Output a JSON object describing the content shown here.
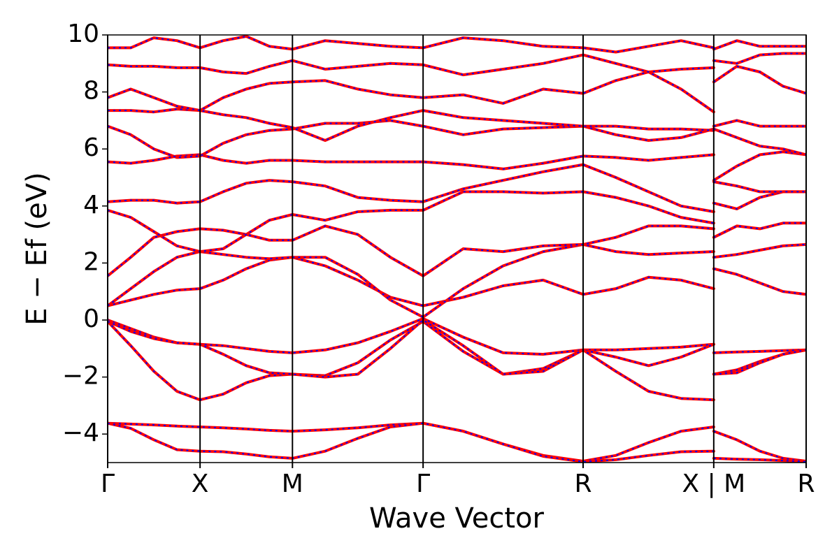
{
  "chart_data": {
    "type": "line",
    "xlabel": "Wave Vector",
    "ylabel": "E − Ef (eV)",
    "xlim": [
      0,
      3.78
    ],
    "ylim": [
      -5,
      10
    ],
    "xticks": [
      {
        "value": 0,
        "label": "Γ"
      },
      {
        "value": 0.5,
        "label": "X"
      },
      {
        "value": 1.0,
        "label": "M"
      },
      {
        "value": 1.707,
        "label": "Γ"
      },
      {
        "value": 2.573,
        "label": "R"
      },
      {
        "value": 3.28,
        "label": "X | M"
      },
      {
        "value": 3.78,
        "label": "R"
      }
    ],
    "yticks": [
      {
        "value": -4,
        "label": "−4"
      },
      {
        "value": -2,
        "label": "−2"
      },
      0,
      2,
      4,
      6,
      8,
      {
        "value": 10,
        "label": "10"
      }
    ],
    "line_color": "#ff0000",
    "dash_color": "#0000ff",
    "x": [
      0,
      0.125,
      0.25,
      0.375,
      0.5,
      0.625,
      0.75,
      0.875,
      1.0,
      1.177,
      1.354,
      1.53,
      1.707,
      1.924,
      2.14,
      2.357,
      2.573,
      2.75,
      2.927,
      3.103,
      3.28,
      3.28,
      3.28,
      3.405,
      3.53,
      3.655,
      3.78
    ],
    "series": [
      {
        "values": [
          -3.62,
          -3.65,
          -3.68,
          -3.72,
          -3.75,
          -3.78,
          -3.82,
          -3.87,
          -3.9,
          -3.85,
          -3.78,
          -3.68,
          -3.62,
          -3.9,
          -4.35,
          -4.75,
          -4.95,
          -4.75,
          -4.3,
          -3.9,
          -3.75,
          null,
          -3.9,
          -4.2,
          -4.6,
          -4.85,
          -4.95
        ]
      },
      {
        "values": [
          -3.62,
          -3.8,
          -4.2,
          -4.55,
          -4.6,
          -4.62,
          -4.7,
          -4.8,
          -4.85,
          -4.6,
          -4.15,
          -3.75,
          -3.62,
          -3.9,
          -4.35,
          -4.78,
          -4.97,
          -4.9,
          -4.75,
          -4.62,
          -4.6,
          null,
          -4.85,
          -4.88,
          -4.9,
          -4.93,
          -4.97
        ]
      },
      {
        "values": [
          0,
          -0.3,
          -0.6,
          -0.8,
          -0.85,
          -0.9,
          -1.0,
          -1.1,
          -1.15,
          -1.05,
          -0.8,
          -0.4,
          0.05,
          -0.6,
          -1.15,
          -1.2,
          -1.05,
          -1.05,
          -1.0,
          -0.95,
          -0.85,
          null,
          -1.15,
          -1.12,
          -1.1,
          -1.07,
          -1.05
        ]
      },
      {
        "values": [
          -0.05,
          -0.9,
          -1.8,
          -2.5,
          -2.8,
          -2.6,
          -2.2,
          -1.95,
          -1.9,
          -1.95,
          -1.5,
          -0.7,
          -0.05,
          -1.1,
          -1.9,
          -1.7,
          -1.05,
          -1.3,
          -1.6,
          -1.3,
          -0.85,
          null,
          -1.9,
          -1.75,
          -1.45,
          -1.2,
          -1.05
        ]
      },
      {
        "values": [
          -0.05,
          -0.4,
          -0.65,
          -0.8,
          -0.85,
          -1.2,
          -1.6,
          -1.85,
          -1.9,
          -2.0,
          -1.9,
          -1.0,
          0,
          -0.9,
          -1.9,
          -1.8,
          -1.05,
          -1.8,
          -2.5,
          -2.75,
          -2.8,
          null,
          -1.9,
          -1.85,
          -1.5,
          -1.2,
          -1.05
        ]
      },
      {
        "values": [
          0.5,
          0.7,
          0.9,
          1.05,
          1.1,
          1.4,
          1.8,
          2.1,
          2.2,
          1.9,
          1.4,
          0.8,
          0.5,
          0.8,
          1.2,
          1.4,
          0.9,
          1.1,
          1.5,
          1.4,
          1.1,
          null,
          1.8,
          1.6,
          1.3,
          1.0,
          0.9
        ]
      },
      {
        "values": [
          0.5,
          1.1,
          1.7,
          2.2,
          2.4,
          2.3,
          2.2,
          2.15,
          2.2,
          2.2,
          1.6,
          0.7,
          0.1,
          1.1,
          1.9,
          2.4,
          2.65,
          2.4,
          2.3,
          2.35,
          2.4,
          null,
          2.2,
          2.3,
          2.45,
          2.6,
          2.65
        ]
      },
      {
        "values": [
          1.55,
          2.2,
          2.9,
          3.1,
          3.2,
          3.15,
          3.0,
          2.8,
          2.8,
          3.3,
          3.0,
          2.2,
          1.55,
          2.5,
          2.4,
          2.6,
          2.65,
          2.9,
          3.3,
          3.3,
          3.2,
          null,
          2.9,
          3.3,
          3.2,
          3.4,
          3.4
        ]
      },
      {
        "values": [
          3.85,
          3.6,
          3.1,
          2.6,
          2.4,
          2.5,
          3.0,
          3.5,
          3.7,
          3.5,
          3.8,
          3.85,
          3.85,
          4.5,
          4.5,
          4.45,
          4.5,
          4.3,
          4.0,
          3.6,
          3.4,
          null,
          4.1,
          3.9,
          4.3,
          4.5,
          4.5
        ]
      },
      {
        "values": [
          4.15,
          4.2,
          4.2,
          4.1,
          4.15,
          4.5,
          4.8,
          4.9,
          4.85,
          4.7,
          4.3,
          4.2,
          4.15,
          4.6,
          4.9,
          5.2,
          5.45,
          5.0,
          4.5,
          4.0,
          3.8,
          null,
          4.85,
          4.7,
          4.5,
          4.5,
          4.5
        ]
      },
      {
        "values": [
          5.55,
          5.5,
          5.6,
          5.75,
          5.8,
          5.6,
          5.5,
          5.6,
          5.6,
          5.55,
          5.55,
          5.55,
          5.55,
          5.45,
          5.3,
          5.5,
          5.75,
          5.7,
          5.6,
          5.7,
          5.8,
          null,
          4.9,
          5.4,
          5.8,
          5.9,
          5.8
        ]
      },
      {
        "values": [
          6.8,
          6.5,
          6.0,
          5.7,
          5.75,
          6.2,
          6.5,
          6.65,
          6.7,
          6.9,
          6.9,
          7.0,
          6.8,
          6.5,
          6.7,
          6.75,
          6.8,
          6.5,
          6.3,
          6.4,
          6.7,
          null,
          6.7,
          6.4,
          6.1,
          6.0,
          5.8
        ]
      },
      {
        "values": [
          7.35,
          7.35,
          7.3,
          7.4,
          7.35,
          7.2,
          7.1,
          6.9,
          6.75,
          6.3,
          6.8,
          7.1,
          7.35,
          7.1,
          7.0,
          6.9,
          6.8,
          6.8,
          6.7,
          6.7,
          6.65,
          null,
          6.8,
          7.0,
          6.8,
          6.8,
          6.8
        ]
      },
      {
        "values": [
          7.8,
          8.1,
          7.8,
          7.5,
          7.35,
          7.8,
          8.1,
          8.3,
          8.35,
          8.4,
          8.1,
          7.9,
          7.8,
          7.9,
          7.6,
          8.1,
          7.95,
          8.4,
          8.7,
          8.8,
          8.85,
          null,
          8.35,
          8.9,
          8.7,
          8.2,
          7.95
        ]
      },
      {
        "values": [
          8.95,
          8.9,
          8.9,
          8.85,
          8.85,
          8.7,
          8.65,
          8.9,
          9.1,
          8.8,
          8.9,
          9.0,
          8.95,
          8.6,
          8.8,
          9.0,
          9.3,
          9.0,
          8.7,
          8.1,
          7.3,
          null,
          9.1,
          9.0,
          9.3,
          9.35,
          9.35
        ]
      },
      {
        "values": [
          9.55,
          9.55,
          9.9,
          9.8,
          9.55,
          9.8,
          9.95,
          9.6,
          9.5,
          9.8,
          9.7,
          9.6,
          9.55,
          9.9,
          9.8,
          9.6,
          9.55,
          9.4,
          9.6,
          9.8,
          9.55,
          null,
          9.5,
          9.8,
          9.6,
          9.6,
          9.6
        ]
      }
    ]
  }
}
